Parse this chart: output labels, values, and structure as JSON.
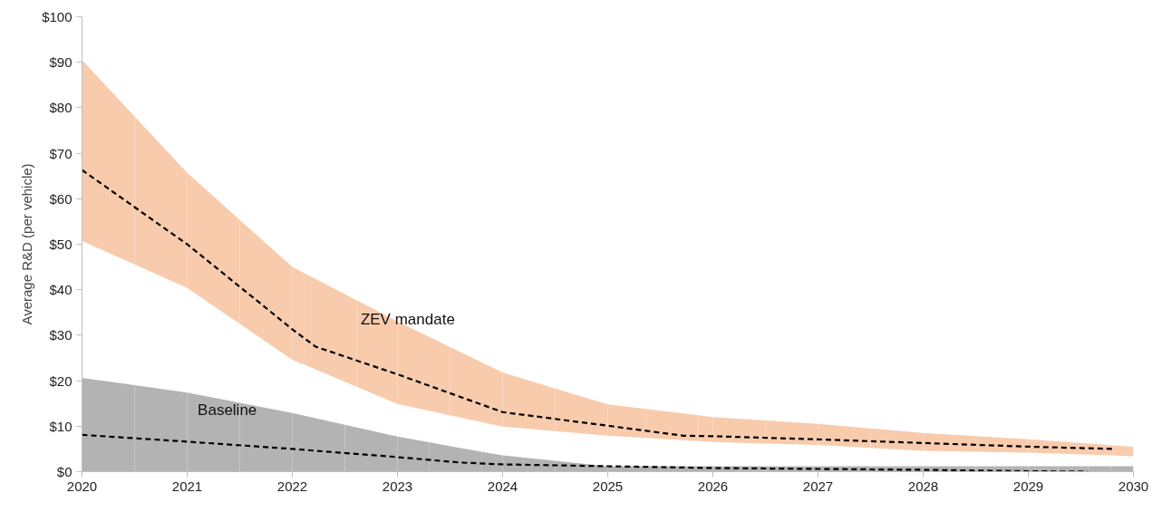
{
  "chart_data": {
    "type": "line",
    "ylabel": "Average R&D (per vehicle)",
    "xlim": [
      2020,
      2030
    ],
    "xticks": [
      2020,
      2021,
      2022,
      2023,
      2024,
      2025,
      2026,
      2027,
      2028,
      2029,
      2030
    ],
    "ylim": [
      0,
      100
    ],
    "yticks": [
      {
        "value": 0,
        "label": "$0"
      },
      {
        "value": 10,
        "label": "$10"
      },
      {
        "value": 20,
        "label": "$20"
      },
      {
        "value": 30,
        "label": "$30"
      },
      {
        "value": 40,
        "label": "$40"
      },
      {
        "value": 50,
        "label": "$50"
      },
      {
        "value": 60,
        "label": "$60"
      },
      {
        "value": 70,
        "label": "$70"
      },
      {
        "value": 80,
        "label": "$80"
      },
      {
        "value": 90,
        "label": "$90"
      },
      {
        "value": 100,
        "label": "$100"
      }
    ],
    "grid": false,
    "legend": false,
    "line_style": "dashed",
    "series": [
      {
        "name": "ZEV mandate",
        "color": "#000000",
        "colors": [
          "#f8cbad",
          "#f8cbad",
          "#f8cbad",
          "#f8cbad",
          "#f8cbad",
          "#f8cbad",
          "#f8cbad",
          "#f8cbad",
          "#f8cbad",
          "#f8cbad",
          "#f8cbad",
          "#f8cbad",
          "#f8cbad",
          "#f8cbad"
        ],
        "x": [
          2020,
          2021,
          2022,
          2022.22,
          2023,
          2024,
          2025,
          2025.72,
          2026,
          2027,
          2028,
          2029,
          2029.8,
          2030
        ],
        "values": [
          66.3,
          50,
          31.3,
          27.5,
          21.4,
          13.1,
          10.1,
          7.9,
          7.8,
          7.1,
          6.3,
          5.5,
          5,
          null
        ],
        "lower": [
          50.7,
          40.4,
          24.6,
          22.5,
          14.9,
          9.9,
          7.9,
          6.9,
          6.5,
          5.9,
          4.6,
          4.2,
          3.6,
          3.4
        ],
        "upper": [
          90.5,
          65.7,
          45,
          42.4,
          33,
          21.8,
          14.8,
          12.8,
          12,
          10.5,
          8.5,
          7.1,
          5.8,
          5.5
        ]
      },
      {
        "name": "Baseline",
        "color": "#000000",
        "colors": [
          "#b3b3b3",
          "#b3b3b3",
          "#b3b3b3",
          "#b3b3b3",
          "#b3b3b3",
          "#b3b3b3",
          "#b3b3b3",
          "#b3b3b3",
          "#b3b3b3",
          "#b3b3b3",
          "#b3b3b3",
          "#b3b3b3",
          "#b3b3b3"
        ],
        "x": [
          2020,
          2021,
          2022,
          2023,
          2023.6,
          2024,
          2025,
          2026,
          2027,
          2028,
          2029,
          2029.57,
          2030
        ],
        "values": [
          8.1,
          6.6,
          5,
          3.2,
          2,
          1.6,
          1.2,
          0.8,
          0.6,
          0.4,
          0.1,
          0,
          null
        ],
        "lower": [
          0,
          0,
          0,
          0,
          0,
          0,
          0,
          0,
          0,
          0,
          0,
          0,
          0
        ],
        "upper": [
          20.6,
          17.4,
          12.9,
          7.7,
          5.2,
          3.6,
          1.2,
          1.2,
          1.2,
          1.2,
          1.2,
          1.2,
          1.2
        ]
      }
    ]
  }
}
